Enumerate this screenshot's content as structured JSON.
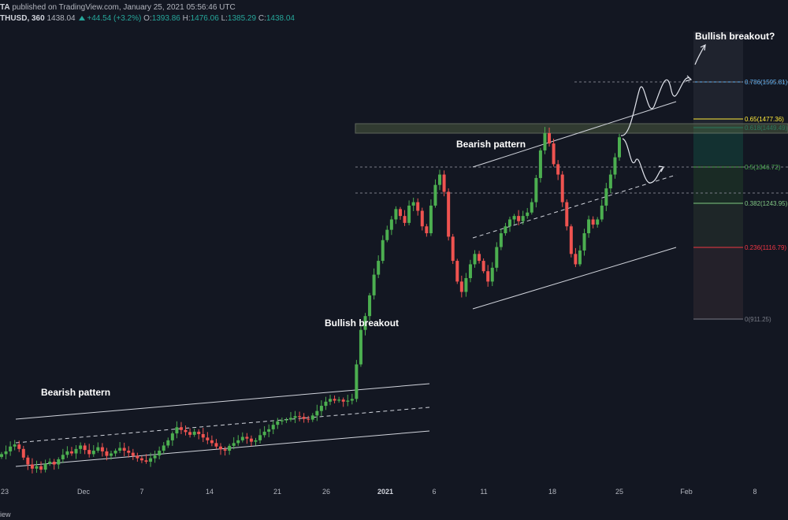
{
  "header": {
    "line1": {
      "author": "TA",
      "publisher": "published on TradingView.com, January 25, 2021 05:56:46 UTC"
    },
    "line2": {
      "symbol": "THUSD, 360",
      "last": "1438.04",
      "change": "+44.54 (+3.2%)",
      "o_label": "O:",
      "o": "1393.86",
      "h_label": "H:",
      "h": "1476.06",
      "l_label": "L:",
      "l": "1385.29",
      "c_label": "C:",
      "c": "1438.04"
    }
  },
  "footer": {
    "text": "iew"
  },
  "colors": {
    "background": "#131722",
    "up": "#4caf50",
    "down": "#ef5350",
    "axis_text": "#b2b5be",
    "channel": "#d1d4dc",
    "fib_0": "#787b86",
    "fib_0236": "#f23645",
    "fib_0382": "#81c784",
    "fib_05": "#4caf50",
    "fib_0618": "#089981",
    "fib_065": "#ffeb3b",
    "fib_0786": "#64b5f6"
  },
  "chart_data": {
    "type": "candlestick",
    "x_axis": {
      "tick_labels": [
        "23",
        "Dec",
        "7",
        "14",
        "21",
        "26",
        "2021",
        "6",
        "11",
        "18",
        "25",
        "Feb",
        "8"
      ]
    },
    "annotations": [
      "Bearish pattern",
      "Bullish breakout",
      "Bearish pattern",
      "Bullish breakout?"
    ],
    "fib_levels": [
      {
        "ratio": 0.786,
        "label": "0.786(1595.81)"
      },
      {
        "ratio": 0.65,
        "label": "0.65(1477.36)"
      },
      {
        "ratio": 0.618,
        "label": "0.618(1449.49)"
      },
      {
        "ratio": 0.5,
        "label": "0.5(1346.72)"
      },
      {
        "ratio": 0.382,
        "label": "0.382(1243.95)"
      },
      {
        "ratio": 0.236,
        "label": "0.236(1116.79)"
      },
      {
        "ratio": 0,
        "label": "0(911.25)"
      }
    ],
    "closes": [
      520,
      528,
      542,
      548,
      535,
      510,
      490,
      478,
      485,
      475,
      492,
      498,
      490,
      505,
      518,
      528,
      522,
      535,
      545,
      532,
      520,
      530,
      540,
      528,
      515,
      522,
      530,
      538,
      530,
      524,
      515,
      508,
      502,
      498,
      508,
      516,
      530,
      545,
      560,
      580,
      598,
      590,
      584,
      576,
      585,
      578,
      568,
      560,
      552,
      542,
      534,
      530,
      544,
      552,
      560,
      570,
      565,
      556,
      560,
      575,
      585,
      592,
      605,
      615,
      618,
      620,
      625,
      630,
      628,
      622,
      620,
      632,
      645,
      660,
      672,
      680,
      675,
      678,
      672,
      675,
      680,
      780,
      880,
      920,
      980,
      1040,
      1080,
      1140,
      1170,
      1200,
      1230,
      1210,
      1190,
      1240,
      1250,
      1225,
      1180,
      1160,
      1240,
      1300,
      1330,
      1280,
      1150,
      1080,
      1020,
      990,
      1030,
      1070,
      1100,
      1080,
      1050,
      1020,
      1060,
      1120,
      1160,
      1180,
      1200,
      1210,
      1195,
      1210,
      1220,
      1250,
      1320,
      1400,
      1450,
      1420,
      1360,
      1330,
      1250,
      1180,
      1100,
      1070,
      1110,
      1160,
      1200,
      1185,
      1200,
      1240,
      1290,
      1330,
      1380,
      1438
    ]
  }
}
